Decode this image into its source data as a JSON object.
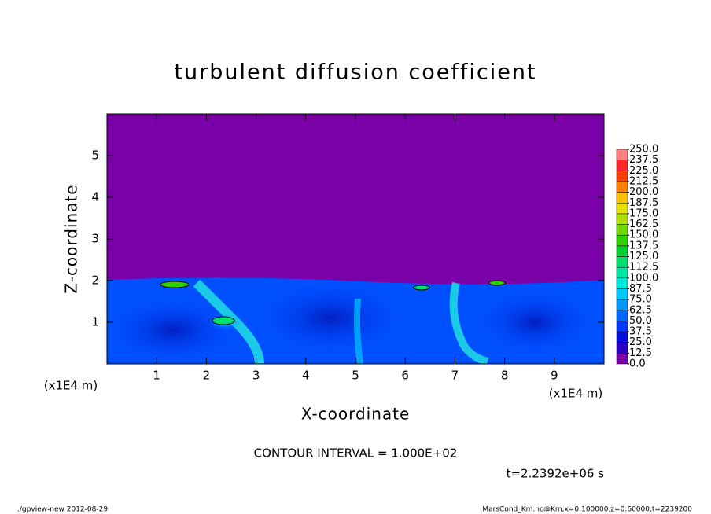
{
  "chart_data": {
    "type": "contour",
    "title": "turbulent diffusion coefficient",
    "x_label": "X-coordinate",
    "y_label": "Z-coordinate",
    "x_unit": "(x1E4 m)",
    "y_unit": "(x1E4 m)",
    "xlim": [
      0,
      10
    ],
    "ylim": [
      0,
      6
    ],
    "xticks": [
      1,
      2,
      3,
      4,
      5,
      6,
      7,
      8,
      9
    ],
    "yticks": [
      1,
      2,
      3,
      4,
      5
    ],
    "contour_interval": "CONTOUR INTERVAL = 1.000E+02",
    "time_label": "t=2.2392e+06 s",
    "footer_left": "./gpview-new  2012-08-29",
    "footer_right": "MarsCond_Km.nc@Km,x=0:100000,z=0:60000,t=2239200",
    "colorbar": {
      "levels": [
        {
          "value": 0,
          "label": "0.0"
        },
        {
          "value": 12.5,
          "label": "12.5"
        },
        {
          "value": 25,
          "label": "25.0"
        },
        {
          "value": 37.5,
          "label": "37.5"
        },
        {
          "value": 50,
          "label": "50.0"
        },
        {
          "value": 62.5,
          "label": "62.5"
        },
        {
          "value": 75,
          "label": "75.0"
        },
        {
          "value": 87.5,
          "label": "87.5"
        },
        {
          "value": 100,
          "label": "100.0"
        },
        {
          "value": 112.5,
          "label": "112.5"
        },
        {
          "value": 125,
          "label": "125.0"
        },
        {
          "value": 137.5,
          "label": "137.5"
        },
        {
          "value": 150,
          "label": "150.0"
        },
        {
          "value": 162.5,
          "label": "162.5"
        },
        {
          "value": 175,
          "label": "175.0"
        },
        {
          "value": 187.5,
          "label": "187.5"
        },
        {
          "value": 200,
          "label": "200.0"
        },
        {
          "value": 212.5,
          "label": "212.5"
        },
        {
          "value": 225,
          "label": "225.0"
        },
        {
          "value": 237.5,
          "label": "237.5"
        },
        {
          "value": 250,
          "label": "250.0"
        }
      ],
      "colors": [
        "#7a00a8",
        "#2a00c8",
        "#0010e0",
        "#0038ff",
        "#0068ff",
        "#0098ff",
        "#00c8ff",
        "#00e8e0",
        "#00e8a8",
        "#00e070",
        "#00d030",
        "#30d000",
        "#70d800",
        "#b0e000",
        "#e8e000",
        "#ffc000",
        "#ff8000",
        "#ff4000",
        "#ff2828",
        "#ff8080"
      ]
    }
  }
}
